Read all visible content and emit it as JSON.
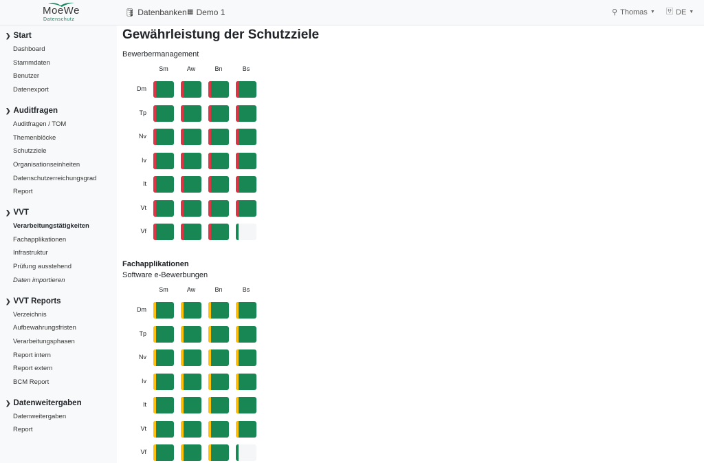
{
  "header": {
    "logo_text": "MoeWe",
    "logo_sub": "Datenschutz",
    "nav": [
      {
        "icon": "database-icon",
        "label": "Datenbanken"
      },
      {
        "icon": "building-icon",
        "label": "Demo 1"
      }
    ],
    "user": "Thomas",
    "language": "DE"
  },
  "sidebar": [
    {
      "title": "Start",
      "items": [
        "Dashboard",
        "Stammdaten",
        "Benutzer",
        "Datenexport"
      ]
    },
    {
      "title": "Auditfragen",
      "items": [
        "Auditfragen / TOM",
        "Themenblöcke",
        "Schutzziele",
        "Organisationseinheiten",
        "Datenschutzerreichungsgrad",
        "Report"
      ]
    },
    {
      "title": "VVT",
      "items": [
        "Verarbeitungstätigkeiten",
        "Fachapplikationen",
        "Infrastruktur",
        "Prüfung ausstehend",
        "Daten importieren"
      ],
      "active": "Verarbeitungstätigkeiten",
      "italic": "Daten importieren"
    },
    {
      "title": "VVT Reports",
      "items": [
        "Verzeichnis",
        "Aufbewahrungsfristen",
        "Verarbeitungsphasen",
        "Report intern",
        "Report extern",
        "BCM Report"
      ]
    },
    {
      "title": "Datenweitergaben",
      "items": [
        "Datenweitergaben",
        "Report"
      ]
    }
  ],
  "page_title": "Gewährleistung der Schutzziele",
  "colors": {
    "green": "#198754",
    "red": "#dc3545",
    "yellow": "#ffc107",
    "empty": "#f4f6f8"
  },
  "matrices": [
    {
      "heading": "",
      "subtitle": "Bewerbermanagement",
      "columns": [
        "Sm",
        "Aw",
        "Bn",
        "Bs"
      ],
      "rows": [
        "Dm",
        "Tp",
        "Nv",
        "Iv",
        "It",
        "Vt",
        "Vf"
      ],
      "cells": [
        [
          "red",
          "red",
          "red",
          "red"
        ],
        [
          "red",
          "red",
          "red",
          "red"
        ],
        [
          "red",
          "red",
          "red",
          "red"
        ],
        [
          "red",
          "red",
          "red",
          "red"
        ],
        [
          "red",
          "red",
          "red",
          "red"
        ],
        [
          "red",
          "red",
          "red",
          "red"
        ],
        [
          "red",
          "red",
          "red",
          "empty"
        ]
      ]
    },
    {
      "heading": "Fachapplikationen",
      "subtitle": "Software e-Bewerbungen",
      "columns": [
        "Sm",
        "Aw",
        "Bn",
        "Bs"
      ],
      "rows": [
        "Dm",
        "Tp",
        "Nv",
        "Iv",
        "It",
        "Vt",
        "Vf"
      ],
      "cells": [
        [
          "yellow",
          "yellow",
          "yellow",
          "yellow"
        ],
        [
          "yellow",
          "yellow",
          "yellow",
          "yellow"
        ],
        [
          "yellow",
          "yellow",
          "yellow",
          "yellow"
        ],
        [
          "yellow",
          "yellow",
          "yellow",
          "yellow"
        ],
        [
          "yellow",
          "yellow",
          "yellow",
          "yellow"
        ],
        [
          "yellow",
          "yellow",
          "yellow",
          "yellow"
        ],
        [
          "yellow",
          "yellow",
          "yellow",
          "empty"
        ]
      ]
    }
  ]
}
